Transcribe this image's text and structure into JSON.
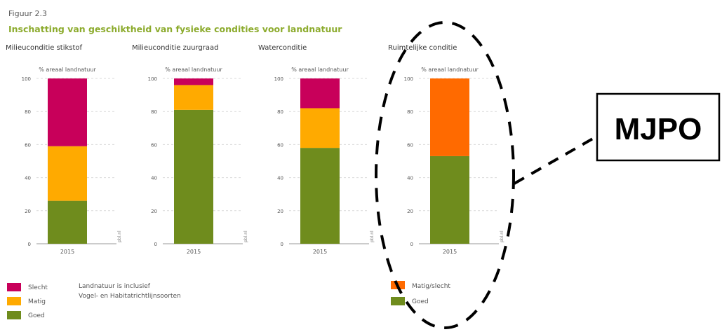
{
  "figure_number": "Figuur 2.3",
  "figure_title": "Inschatting van geschiktheid van fysieke condities voor landnatuur",
  "colors": {
    "title": "#8cab2d",
    "slecht": "#c8005a",
    "matig": "#ffaa00",
    "goed": "#6f8c1d",
    "matig_slecht": "#ff6a00",
    "grid": "#d9d9d9",
    "axis_text": "#555555",
    "annotation": "#000000"
  },
  "annotation": {
    "label": "MJPO",
    "shape": "dashed ellipse around Ruimtelijke conditie panel, dashed leader line to a boxed label"
  },
  "chart_data": [
    {
      "type": "bar",
      "stacked": true,
      "title": "Milieuconditie stikstof",
      "ylabel": "% areaal landnatuur",
      "source": "pbl.nl",
      "categories": [
        "2015"
      ],
      "ylim": [
        0,
        100
      ],
      "yticks": [
        "0",
        "20",
        "40",
        "60",
        "80",
        "100"
      ],
      "grid": true,
      "series": [
        {
          "name": "Goed",
          "values": [
            26
          ]
        },
        {
          "name": "Matig",
          "values": [
            33
          ]
        },
        {
          "name": "Slecht",
          "values": [
            41
          ]
        }
      ]
    },
    {
      "type": "bar",
      "stacked": true,
      "title": "Milieuconditie zuurgraad",
      "ylabel": "% areaal landnatuur",
      "source": "pbl.nl",
      "categories": [
        "2015"
      ],
      "ylim": [
        0,
        100
      ],
      "yticks": [
        "0",
        "20",
        "40",
        "60",
        "80",
        "100"
      ],
      "grid": true,
      "series": [
        {
          "name": "Goed",
          "values": [
            81
          ]
        },
        {
          "name": "Matig",
          "values": [
            15
          ]
        },
        {
          "name": "Slecht",
          "values": [
            4
          ]
        }
      ]
    },
    {
      "type": "bar",
      "stacked": true,
      "title": "Waterconditie",
      "ylabel": "% areaal landnatuur",
      "source": "pbl.nl",
      "categories": [
        "2015"
      ],
      "ylim": [
        0,
        100
      ],
      "yticks": [
        "0",
        "20",
        "40",
        "60",
        "80",
        "100"
      ],
      "grid": true,
      "series": [
        {
          "name": "Goed",
          "values": [
            58
          ]
        },
        {
          "name": "Matig",
          "values": [
            24
          ]
        },
        {
          "name": "Slecht",
          "values": [
            18
          ]
        }
      ]
    },
    {
      "type": "bar",
      "stacked": true,
      "title": "Ruimtelijke conditie",
      "ylabel": "% areaal landnatuur",
      "source": "pbl.nl",
      "categories": [
        "2015"
      ],
      "ylim": [
        0,
        100
      ],
      "yticks": [
        "0",
        "20",
        "40",
        "60",
        "80",
        "100"
      ],
      "grid": true,
      "series": [
        {
          "name": "Goed",
          "values": [
            53
          ]
        },
        {
          "name": "Matig/slecht",
          "values": [
            47
          ]
        }
      ]
    }
  ],
  "legends": {
    "left": {
      "items": [
        {
          "label": "Slecht",
          "color_key": "slecht"
        },
        {
          "label": "Matig",
          "color_key": "matig"
        },
        {
          "label": "Goed",
          "color_key": "goed"
        }
      ],
      "note": [
        "Landnatuur is inclusief",
        "Vogel- en Habitatrichtlijnsoorten"
      ]
    },
    "right": {
      "items": [
        {
          "label": "Matig/slecht",
          "color_key": "matig_slecht"
        },
        {
          "label": "Goed",
          "color_key": "goed"
        }
      ]
    }
  }
}
